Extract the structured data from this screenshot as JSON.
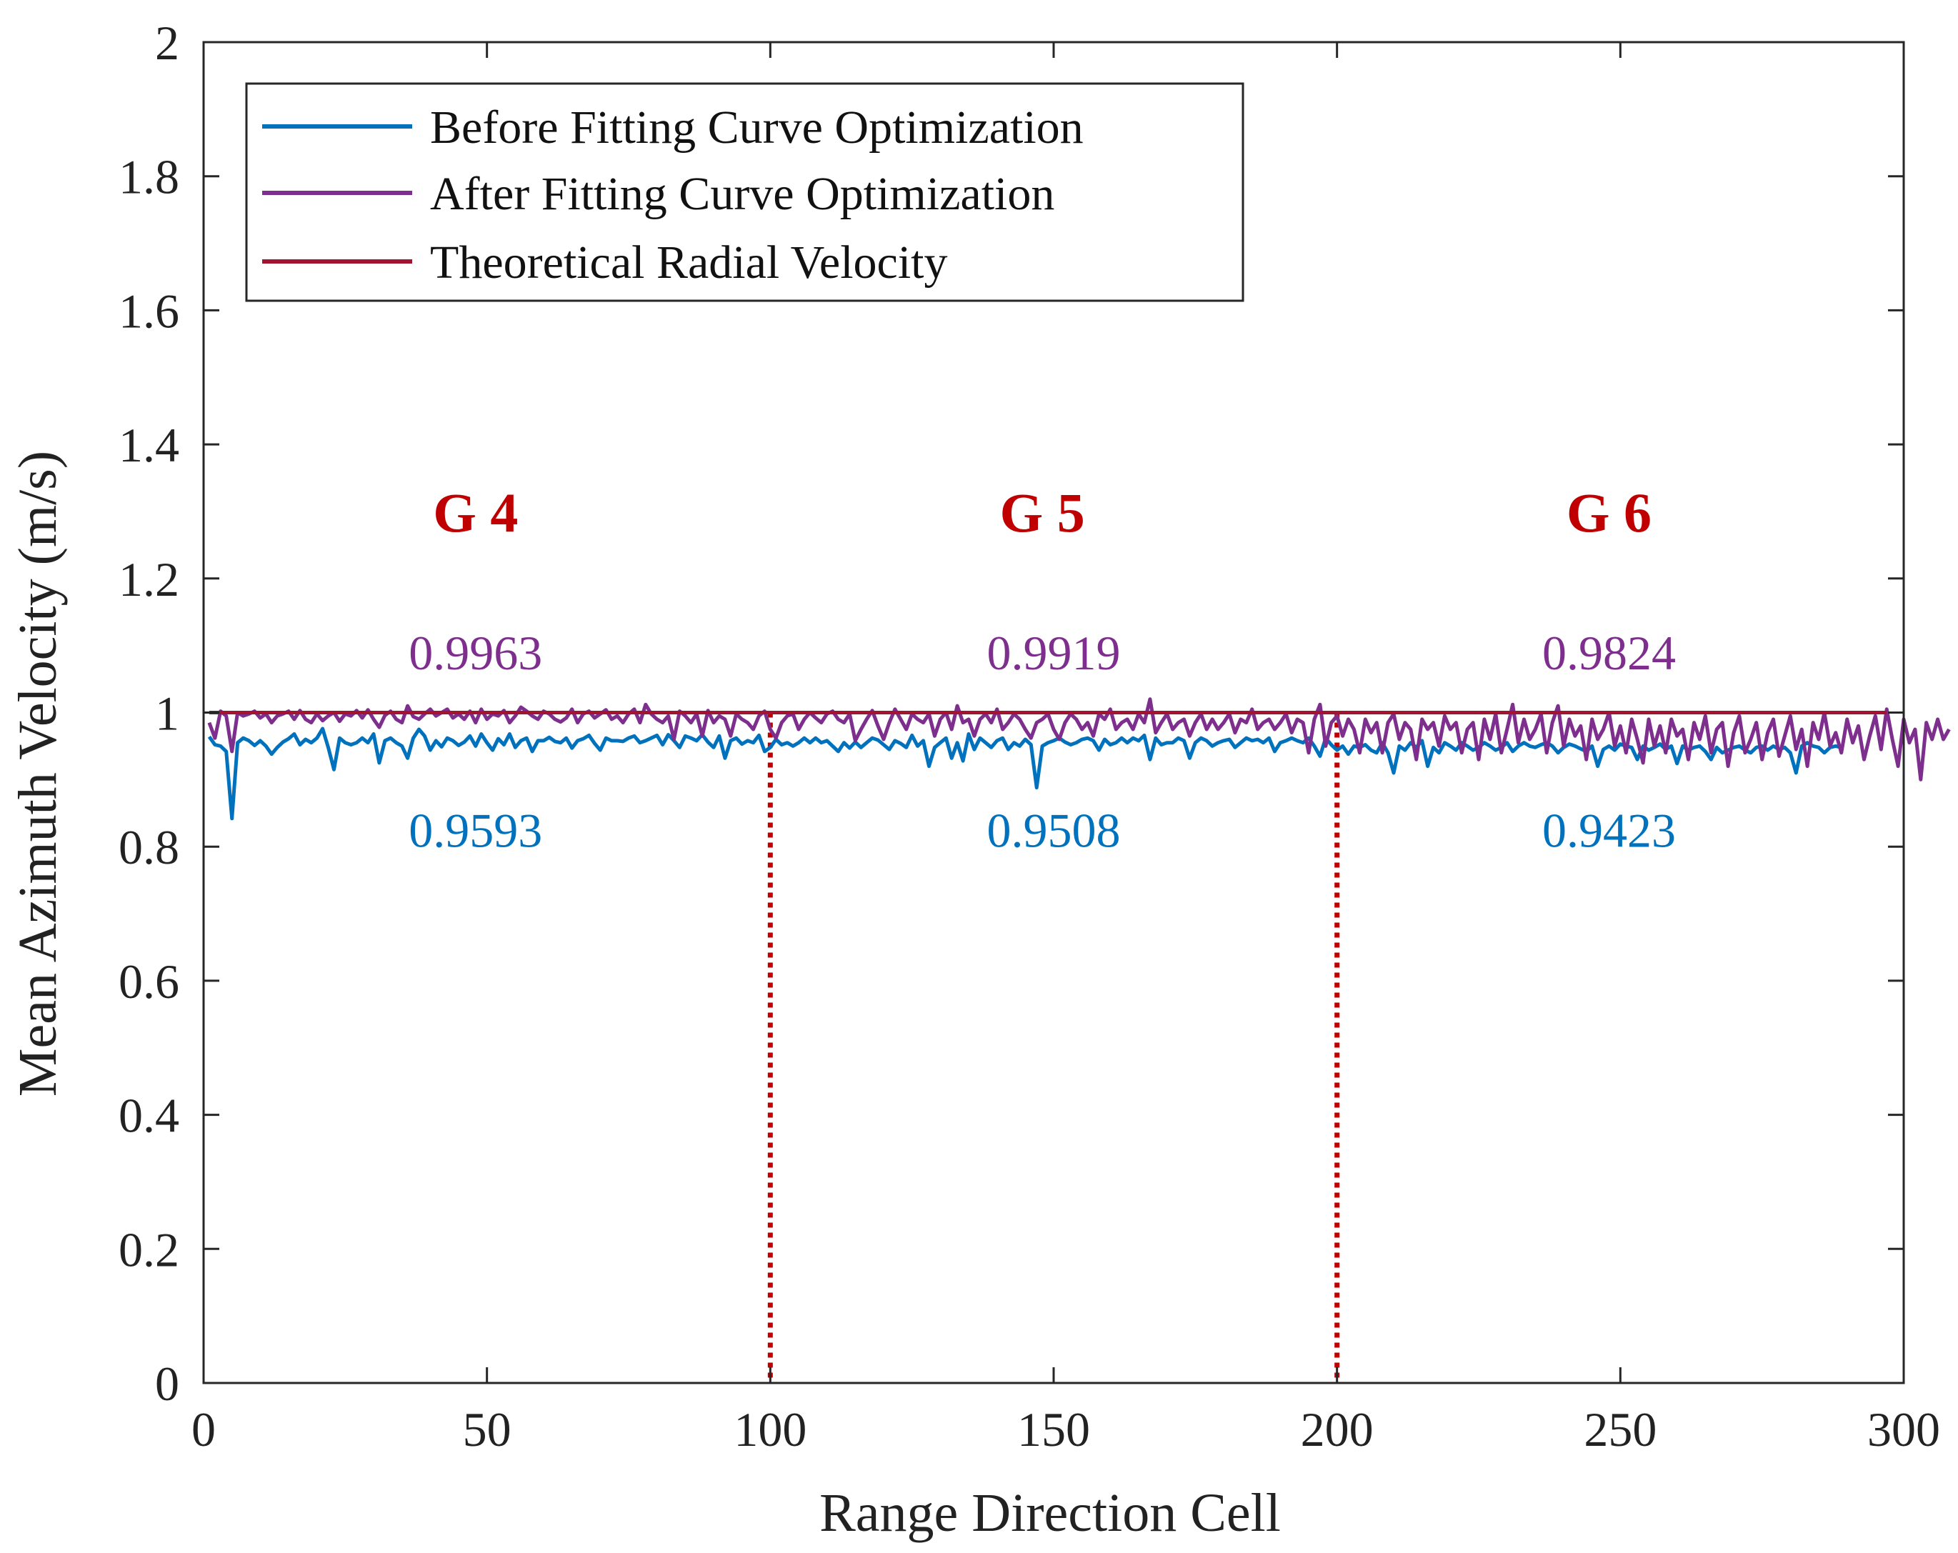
{
  "chart_data": {
    "type": "line",
    "title": "",
    "xlabel": "Range Direction Cell",
    "ylabel": "Mean Azimuth Velocity (m/s)",
    "xlim": [
      0,
      300
    ],
    "ylim": [
      0,
      2
    ],
    "grid": false,
    "legend_position": "top-left",
    "x_ticks": [
      0,
      50,
      100,
      150,
      200,
      250,
      300
    ],
    "x_tick_labels": [
      "0",
      "50",
      "100",
      "150",
      "200",
      "250",
      "300"
    ],
    "y_ticks": [
      0,
      0.2,
      0.4,
      0.6,
      0.8,
      1,
      1.2,
      1.4,
      1.6,
      1.8,
      2
    ],
    "y_tick_labels": [
      "0",
      "0.2",
      "0.4",
      "0.6",
      "0.8",
      "1",
      "1.2",
      "1.4",
      "1.6",
      "1.8",
      "2"
    ],
    "series": [
      {
        "name": "Before Fitting Curve Optimization",
        "color": "#0072bd",
        "x_start": 1,
        "x_step": 1,
        "values": [
          0.964,
          0.952,
          0.95,
          0.942,
          0.842,
          0.955,
          0.962,
          0.958,
          0.951,
          0.958,
          0.95,
          0.938,
          0.948,
          0.956,
          0.961,
          0.968,
          0.952,
          0.96,
          0.955,
          0.962,
          0.976,
          0.948,
          0.915,
          0.962,
          0.955,
          0.952,
          0.955,
          0.962,
          0.955,
          0.968,
          0.925,
          0.958,
          0.962,
          0.955,
          0.95,
          0.932,
          0.962,
          0.975,
          0.965,
          0.944,
          0.958,
          0.949,
          0.962,
          0.958,
          0.951,
          0.956,
          0.965,
          0.95,
          0.968,
          0.955,
          0.944,
          0.961,
          0.952,
          0.968,
          0.948,
          0.958,
          0.962,
          0.942,
          0.958,
          0.958,
          0.963,
          0.957,
          0.955,
          0.962,
          0.947,
          0.958,
          0.961,
          0.966,
          0.954,
          0.944,
          0.962,
          0.958,
          0.958,
          0.957,
          0.962,
          0.965,
          0.955,
          0.958,
          0.962,
          0.966,
          0.952,
          0.967,
          0.958,
          0.948,
          0.965,
          0.962,
          0.958,
          0.967,
          0.956,
          0.948,
          0.965,
          0.932,
          0.958,
          0.962,
          0.953,
          0.958,
          0.955,
          0.966,
          0.942,
          0.948,
          0.96,
          0.952,
          0.955,
          0.95,
          0.955,
          0.962,
          0.955,
          0.962,
          0.955,
          0.958,
          0.95,
          0.942,
          0.955,
          0.947,
          0.956,
          0.948,
          0.955,
          0.962,
          0.959,
          0.952,
          0.945,
          0.958,
          0.954,
          0.948,
          0.966,
          0.95,
          0.958,
          0.92,
          0.948,
          0.955,
          0.962,
          0.932,
          0.955,
          0.928,
          0.968,
          0.945,
          0.962,
          0.955,
          0.948,
          0.958,
          0.962,
          0.945,
          0.955,
          0.95,
          0.96,
          0.952,
          0.888,
          0.95,
          0.955,
          0.958,
          0.962,
          0.956,
          0.952,
          0.955,
          0.96,
          0.962,
          0.958,
          0.944,
          0.96,
          0.952,
          0.955,
          0.962,
          0.955,
          0.962,
          0.958,
          0.966,
          0.93,
          0.962,
          0.952,
          0.955,
          0.955,
          0.962,
          0.958,
          0.932,
          0.955,
          0.962,
          0.958,
          0.95,
          0.955,
          0.958,
          0.96,
          0.948,
          0.955,
          0.962,
          0.958,
          0.96,
          0.955,
          0.962,
          0.942,
          0.955,
          0.958,
          0.962,
          0.958,
          0.955,
          0.962,
          0.95,
          0.935,
          0.962,
          0.952,
          0.944,
          0.95,
          0.938,
          0.95,
          0.948,
          0.952,
          0.944,
          0.94,
          0.955,
          0.94,
          0.91,
          0.95,
          0.944,
          0.955,
          0.948,
          0.958,
          0.92,
          0.948,
          0.94,
          0.955,
          0.95,
          0.944,
          0.955,
          0.95,
          0.944,
          0.948,
          0.955,
          0.95,
          0.944,
          0.948,
          0.955,
          0.942,
          0.95,
          0.955,
          0.95,
          0.948,
          0.952,
          0.955,
          0.95,
          0.94,
          0.948,
          0.953,
          0.95,
          0.946,
          0.942,
          0.95,
          0.92,
          0.945,
          0.95,
          0.944,
          0.953,
          0.95,
          0.948,
          0.93,
          0.95,
          0.944,
          0.948,
          0.953,
          0.945,
          0.95,
          0.924,
          0.95,
          0.944,
          0.948,
          0.95,
          0.942,
          0.93,
          0.948,
          0.94,
          0.944,
          0.948,
          0.95,
          0.944,
          0.94,
          0.948,
          0.95,
          0.944,
          0.95,
          0.945,
          0.948,
          0.94,
          0.91,
          0.95,
          0.955,
          0.95,
          0.948,
          0.94,
          0.948,
          0.95,
          0.948
        ]
      },
      {
        "name": "After Fitting Curve Optimization",
        "color": "#7e2f8e",
        "x_start": 1,
        "x_step": 1,
        "values": [
          0.985,
          0.962,
          1.002,
          0.995,
          0.942,
          1.0,
          0.995,
          0.998,
          1.002,
          0.992,
          0.998,
          0.985,
          0.995,
          0.998,
          1.002,
          0.99,
          1.003,
          0.99,
          0.985,
          0.998,
          0.988,
          0.995,
          1.0,
          0.987,
          0.998,
          0.995,
          1.003,
          0.992,
          1.004,
          0.99,
          0.978,
          0.996,
          1.002,
          0.99,
          0.985,
          1.01,
          0.994,
          0.99,
          0.998,
          1.005,
          0.995,
          1.0,
          1.005,
          0.992,
          0.998,
          0.99,
          1.002,
          0.985,
          1.005,
          0.99,
          0.998,
          0.995,
          1.003,
          0.985,
          0.995,
          1.008,
          1.002,
          0.995,
          0.99,
          1.002,
          0.998,
          0.99,
          0.986,
          0.992,
          1.005,
          0.985,
          0.998,
          1.002,
          0.992,
          0.998,
          1.004,
          0.99,
          0.995,
          0.985,
          0.998,
          1.005,
          0.985,
          1.012,
          0.998,
          0.99,
          0.985,
          0.995,
          0.96,
          1.002,
          0.995,
          0.985,
          0.998,
          0.965,
          1.003,
          0.985,
          0.995,
          0.99,
          0.965,
          0.998,
          0.99,
          0.985,
          0.975,
          0.995,
          1.002,
          0.975,
          0.962,
          0.985,
          0.995,
          0.998,
          0.975,
          0.99,
          1.0,
          0.992,
          0.985,
          0.998,
          1.002,
          0.99,
          0.985,
          0.998,
          0.958,
          0.975,
          0.99,
          1.003,
          0.98,
          0.96,
          0.985,
          1.005,
          0.99,
          0.975,
          0.998,
          0.99,
          0.985,
          0.998,
          0.965,
          0.99,
          1.0,
          0.975,
          1.01,
          0.985,
          0.99,
          0.965,
          0.99,
          0.998,
          0.985,
          1.005,
          0.975,
          0.985,
          0.998,
          0.99,
          0.975,
          0.962,
          0.985,
          0.99,
          0.998,
          0.975,
          0.96,
          0.985,
          0.998,
          0.99,
          0.975,
          0.985,
          0.965,
          0.998,
          0.99,
          1.005,
          0.975,
          0.985,
          0.99,
          0.975,
          0.998,
          0.985,
          1.02,
          0.97,
          0.985,
          0.998,
          0.975,
          0.985,
          0.99,
          0.965,
          0.985,
          0.998,
          0.975,
          0.99,
          0.975,
          0.985,
          0.998,
          0.97,
          0.99,
          0.985,
          1.005,
          0.975,
          0.985,
          0.99,
          0.975,
          0.985,
          0.998,
          0.97,
          0.99,
          0.985,
          0.94,
          0.99,
          1.012,
          0.95,
          0.985,
          0.995,
          0.965,
          0.99,
          0.975,
          0.94,
          0.99,
          0.97,
          0.985,
          0.94,
          0.985,
          0.998,
          0.96,
          0.985,
          0.975,
          0.93,
          0.99,
          0.975,
          0.985,
          0.95,
          0.995,
          0.975,
          0.985,
          0.94,
          0.975,
          0.985,
          0.93,
          0.99,
          0.96,
          0.998,
          0.94,
          0.975,
          1.012,
          0.955,
          0.99,
          0.96,
          0.975,
          0.998,
          0.94,
          0.985,
          1.01,
          0.95,
          0.99,
          0.965,
          0.98,
          0.93,
          0.99,
          0.96,
          0.975,
          1.0,
          0.95,
          0.98,
          0.94,
          0.99,
          0.96,
          0.925,
          0.99,
          0.95,
          0.98,
          0.94,
          0.99,
          0.965,
          0.975,
          0.93,
          0.985,
          0.96,
          0.995,
          0.94,
          0.975,
          0.985,
          0.92,
          0.97,
          0.995,
          0.94,
          0.96,
          0.985,
          0.93,
          0.97,
          0.99,
          0.935,
          0.965,
          0.995,
          0.945,
          0.975,
          0.92,
          0.985,
          0.96,
          1.0,
          0.95,
          0.97,
          0.94,
          0.99,
          0.955,
          0.98,
          0.93,
          0.965,
          0.995,
          0.945,
          1.005,
          0.96,
          0.92,
          0.99,
          0.955,
          0.975,
          0.9,
          0.985,
          0.96,
          0.99,
          0.96,
          0.975
        ]
      },
      {
        "name": "Theoretical Radial Velocity",
        "color": "#a2142f",
        "x_start": 1,
        "x_end": 297,
        "constant": 1.0
      }
    ],
    "group_dividers": [
      100,
      200
    ],
    "divider_color": "#c00000",
    "annotations": {
      "groups": [
        {
          "label": "G 4",
          "x": 48,
          "y": 1.3,
          "color": "#c00000"
        },
        {
          "label": "G 5",
          "x": 148,
          "y": 1.3,
          "color": "#c00000"
        },
        {
          "label": "G 6",
          "x": 248,
          "y": 1.3,
          "color": "#c00000"
        }
      ],
      "after_values": [
        {
          "label": "0.9963",
          "x": 48,
          "y": 1.09,
          "color": "#7e2f8e"
        },
        {
          "label": "0.9919",
          "x": 150,
          "y": 1.09,
          "color": "#7e2f8e"
        },
        {
          "label": "0.9824",
          "x": 248,
          "y": 1.09,
          "color": "#7e2f8e"
        }
      ],
      "before_values": [
        {
          "label": "0.9593",
          "x": 48,
          "y": 0.825,
          "color": "#0072bd"
        },
        {
          "label": "0.9508",
          "x": 150,
          "y": 0.825,
          "color": "#0072bd"
        },
        {
          "label": "0.9423",
          "x": 248,
          "y": 0.825,
          "color": "#0072bd"
        }
      ]
    }
  }
}
